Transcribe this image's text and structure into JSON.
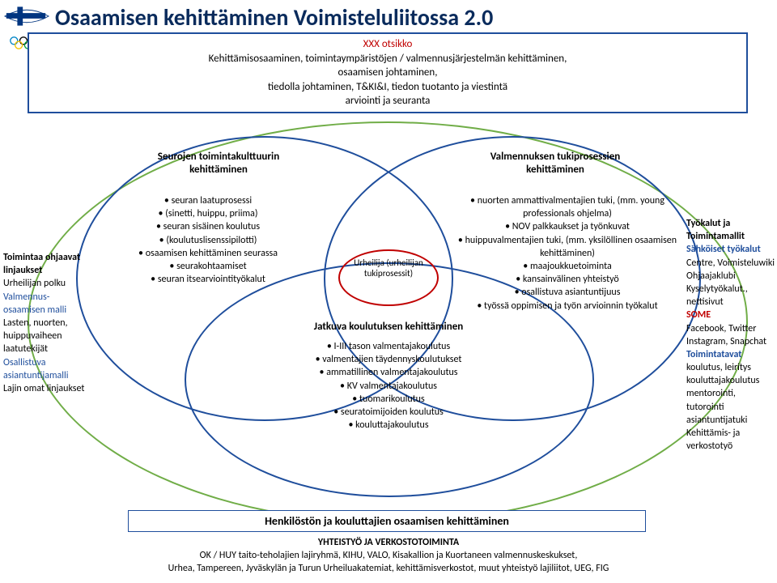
{
  "title": "Osaamisen kehittäminen Voimisteluliitossa 2.0",
  "colors": {
    "blue": "#1f4e9c",
    "green": "#70ad47",
    "red": "#c00000",
    "darkblue": "#0a2b5c"
  },
  "topbox": {
    "xxx": "XXX otsikko",
    "line1": "Kehittämisosaaminen, toimintaympäristöjen / valmennusjärjestelmän kehittäminen,",
    "line2": "osaamisen johtaminen,",
    "line3": "tiedolla johtaminen, T&KI&I, tiedon tuotanto ja viestintä",
    "line4": "arviointi ja seuranta"
  },
  "labels": {
    "left": "Seurojen toimintakulttuurin kehittäminen",
    "right": "Valmennuksen tukiprosessien kehittäminen",
    "center": "Urheilija (urheilijan tukiprosessit)",
    "jk": "Jatkuva koulutuksen kehittäminen"
  },
  "leftItems": [
    "seuran laatuprosessi",
    "(sinetti, huippu, priima)",
    "seuran sisäinen koulutus",
    "(koulutuslisenssipilotti)",
    "osaamisen kehittäminen seurassa",
    "seurakohtaamiset",
    "seuran itsearviointityökalut"
  ],
  "rightItems": [
    "nuorten ammattivalmentajien tuki, (mm. young professionals ohjelma)",
    "NOV palkkaukset ja työnkuvat",
    "huippuvalmentajien tuki, (mm. yksilöllinen osaamisen kehittäminen)",
    "maajoukkuetoiminta",
    "kansainvälinen yhteistyö",
    "osallistuva asiantuntijuus",
    "työssä oppimisen ja työn arvioinnin työkalut"
  ],
  "bottomItems": [
    "I-III tason valmentajakoulutus",
    "valmentajien täydennyskoulutukset",
    "ammatillinen valmentajakoulutus",
    "KV valmentajakoulutus",
    "tuomarikoulutus",
    "seuratoimijoiden koulutus",
    "kouluttajakoulutus"
  ],
  "sideLeft": [
    {
      "t": "Toimintaa ohjaavat linjaukset",
      "c": "bold"
    },
    {
      "t": "Urheilijan polku",
      "c": ""
    },
    {
      "t": "Valmennus-osaamisen malli",
      "c": "blue"
    },
    {
      "t": "Lasten, nuorten, huippuvaiheen laatutekijät",
      "c": ""
    },
    {
      "t": "Osallistuva asiantuntijamalli",
      "c": "blue"
    },
    {
      "t": "Lajin omat linjaukset",
      "c": ""
    }
  ],
  "sideRight": [
    {
      "t": "Työkalut ja Toimintamallit",
      "c": "bold"
    },
    {
      "t": "Sähköiset työkalut",
      "c": "bold blue"
    },
    {
      "t": "Centre, Voimisteluwiki",
      "c": ""
    },
    {
      "t": "Ohjaajaklubi",
      "c": ""
    },
    {
      "t": "Kyselytyökalut., nettisivut",
      "c": ""
    },
    {
      "t": "SOME",
      "c": "bold red"
    },
    {
      "t": "Facebook, Twitter Instagram, Snapchat",
      "c": ""
    },
    {
      "t": "Toimintatavat",
      "c": "bold blue"
    },
    {
      "t": "koulutus, leiritys",
      "c": ""
    },
    {
      "t": "kouluttajakoulutus",
      "c": ""
    },
    {
      "t": "mentorointi, tutorointi",
      "c": ""
    },
    {
      "t": "asiantuntijatuki",
      "c": ""
    },
    {
      "t": "Kehittämis- ja verkostotyö",
      "c": ""
    }
  ],
  "hk": "Henkilöstön ja kouluttajien osaamisen kehittäminen",
  "footer": {
    "h": "YHTEISTYÖ JA VERKOSTOTOIMINTA",
    "l1": "OK / HUY taito-teholajien lajiryhmä, KIHU, VALO, Kisakallion ja Kuortaneen valmennuskeskukset,",
    "l2": "Urhea, Tampereen, Jyväskylän ja Turun Urheiluakatemiat, kehittämisverkostot, muut yhteistyö lajiliitot, UEG, FIG"
  }
}
